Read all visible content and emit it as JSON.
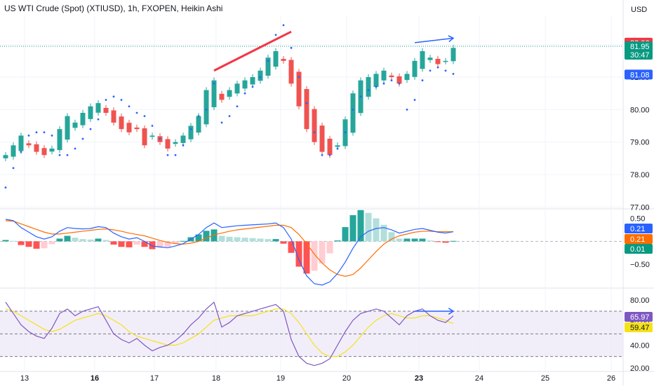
{
  "header": {
    "title": "US WTI Crude (Spot) (XTIUSD), 1h, FXOPEN, Heikin Ashi",
    "currency": "USD"
  },
  "colors": {
    "up": "#26a69a",
    "down": "#ef5350",
    "psar": "#2962ff",
    "macd_line": "#2962ff",
    "signal_line": "#ff6d00",
    "hist_up_strong": "#26a69a",
    "hist_up_weak": "#b2dfdb",
    "hist_down_strong": "#ff5252",
    "hist_down_weak": "#ffcdd2",
    "rsi_line": "#7e57c2",
    "rsi_ma": "#f5e21a",
    "rsi_band": "#ede7f6",
    "divergence_red": "#f23645",
    "divergence_blue": "#2962ff",
    "grid": "#f0f3fa",
    "text": "#131722"
  },
  "price_axis": {
    "ticks": [
      "82.00",
      "81.00",
      "80.00",
      "79.00",
      "78.00",
      "77.00"
    ],
    "badges": [
      {
        "label": "82.06",
        "color": "#f23645"
      },
      {
        "label": "81.95",
        "sub": "30:47",
        "color": "#089981"
      },
      {
        "label": "81.08",
        "color": "#2962ff"
      }
    ]
  },
  "macd_axis": {
    "ticks": [
      "0.50",
      "−0.50"
    ],
    "badges": [
      {
        "label": "0.21",
        "color": "#2962ff"
      },
      {
        "label": "0.21",
        "color": "#ff6d00"
      },
      {
        "label": "0.01",
        "color": "#089981"
      }
    ]
  },
  "rsi_axis": {
    "ticks": [
      "80.00",
      "60.00",
      "40.00",
      "20.00"
    ],
    "badges": [
      {
        "label": "65.97",
        "color": "#7e57c2"
      },
      {
        "label": "59.47",
        "color": "#f5e21a"
      }
    ]
  },
  "time_axis": {
    "labels": [
      {
        "text": "13",
        "bold": false
      },
      {
        "text": "16",
        "bold": true
      },
      {
        "text": "17",
        "bold": false
      },
      {
        "text": "18",
        "bold": false
      },
      {
        "text": "19",
        "bold": false
      },
      {
        "text": "20",
        "bold": false
      },
      {
        "text": "23",
        "bold": true
      },
      {
        "text": "24",
        "bold": false
      },
      {
        "text": "25",
        "bold": false
      },
      {
        "text": "26",
        "bold": false
      }
    ]
  },
  "chart_data": {
    "type": "candlestick",
    "candle_type": "Heikin Ashi",
    "interval": "1h",
    "ylim": [
      76.9,
      82.9
    ],
    "current_price": 81.95,
    "countdown": "30:47",
    "hline_price": 81.95,
    "close_series": [
      78.6,
      78.9,
      79.2,
      78.9,
      78.7,
      78.6,
      78.8,
      79.4,
      79.8,
      79.6,
      79.9,
      80.1,
      80.2,
      79.9,
      79.6,
      79.4,
      79.3,
      79.4,
      78.9,
      79.2,
      79.0,
      78.8,
      79.0,
      79.2,
      79.5,
      79.8,
      80.6,
      80.9,
      80.3,
      80.6,
      80.8,
      80.9,
      81.0,
      81.2,
      81.6,
      81.8,
      81.5,
      80.8,
      80.1,
      79.4,
      79.0,
      78.7,
      78.6,
      78.9,
      79.7,
      80.5,
      80.9,
      81.0,
      81.1,
      81.2,
      81.0,
      80.8,
      81.1,
      81.5,
      81.8,
      81.6,
      81.4,
      81.5,
      81.9
    ],
    "psar_series": [
      77.6,
      78.2,
      78.7,
      79.2,
      79.3,
      79.3,
      79.2,
      78.6,
      78.6,
      78.8,
      79.1,
      79.4,
      79.7,
      80.3,
      80.4,
      80.3,
      80.1,
      79.9,
      79.8,
      79.5,
      79.1,
      78.6,
      78.6,
      78.9,
      79.4,
      79.8,
      80.0,
      80.8,
      79.6,
      79.8,
      80.1,
      80.5,
      80.7,
      81.0,
      81.5,
      82.3,
      82.6,
      81.9,
      81.0,
      80.2,
      79.3,
      78.6,
      78.6,
      78.8,
      79.3,
      80.0,
      80.4,
      80.6,
      80.7,
      80.8,
      80.9,
      80.8,
      80.0,
      80.3,
      80.9,
      81.2,
      81.3,
      81.2,
      81.1
    ],
    "macd": {
      "ylim": [
        -1.0,
        0.6
      ],
      "macd_line": [
        0.48,
        0.45,
        0.3,
        0.2,
        0.1,
        0.05,
        0.1,
        0.22,
        0.3,
        0.28,
        0.27,
        0.28,
        0.32,
        0.3,
        0.18,
        0.1,
        0.05,
        0.08,
        0.0,
        -0.1,
        -0.12,
        -0.14,
        -0.1,
        -0.05,
        0.05,
        0.15,
        0.3,
        0.4,
        0.3,
        0.32,
        0.34,
        0.35,
        0.36,
        0.37,
        0.38,
        0.4,
        0.3,
        0.05,
        -0.4,
        -0.75,
        -0.92,
        -0.95,
        -0.88,
        -0.7,
        -0.45,
        -0.15,
        0.1,
        0.22,
        0.28,
        0.3,
        0.25,
        0.18,
        0.22,
        0.26,
        0.28,
        0.24,
        0.2,
        0.18,
        0.21
      ],
      "signal_line": [
        0.45,
        0.44,
        0.38,
        0.32,
        0.26,
        0.2,
        0.16,
        0.16,
        0.18,
        0.2,
        0.22,
        0.24,
        0.26,
        0.27,
        0.25,
        0.22,
        0.18,
        0.15,
        0.12,
        0.07,
        0.02,
        -0.02,
        -0.05,
        -0.06,
        -0.04,
        0.0,
        0.07,
        0.14,
        0.18,
        0.22,
        0.25,
        0.27,
        0.29,
        0.31,
        0.33,
        0.35,
        0.35,
        0.3,
        0.15,
        -0.05,
        -0.28,
        -0.47,
        -0.62,
        -0.72,
        -0.76,
        -0.72,
        -0.58,
        -0.4,
        -0.22,
        -0.06,
        0.05,
        0.12,
        0.16,
        0.2,
        0.22,
        0.22,
        0.21,
        0.21,
        0.21
      ],
      "histogram": [
        0.03,
        0.01,
        -0.08,
        -0.12,
        -0.16,
        -0.15,
        -0.06,
        0.06,
        0.12,
        0.08,
        0.05,
        0.04,
        0.06,
        0.03,
        -0.07,
        -0.12,
        -0.13,
        -0.07,
        -0.12,
        -0.17,
        -0.14,
        -0.12,
        -0.05,
        0.01,
        0.09,
        0.15,
        0.23,
        0.26,
        0.12,
        0.1,
        0.09,
        0.08,
        0.07,
        0.06,
        0.05,
        0.05,
        -0.05,
        -0.25,
        -0.55,
        -0.7,
        -0.64,
        -0.48,
        -0.26,
        0.02,
        0.31,
        0.57,
        0.68,
        0.62,
        0.5,
        0.36,
        0.2,
        0.06,
        0.06,
        0.06,
        0.06,
        0.02,
        -0.01,
        -0.03,
        0.01
      ]
    },
    "rsi": {
      "ylim": [
        18,
        88
      ],
      "upper_band": 70,
      "middle_band": 50,
      "lower_band": 30,
      "rsi_line": [
        78,
        68,
        58,
        52,
        48,
        46,
        55,
        68,
        72,
        66,
        70,
        72,
        74,
        62,
        50,
        45,
        42,
        46,
        40,
        35,
        38,
        40,
        44,
        50,
        58,
        64,
        72,
        78,
        56,
        60,
        66,
        68,
        70,
        72,
        74,
        76,
        70,
        45,
        30,
        24,
        22,
        24,
        28,
        40,
        52,
        62,
        68,
        70,
        72,
        70,
        64,
        58,
        66,
        70,
        72,
        66,
        62,
        60,
        66
      ],
      "rsi_ma": [
        72,
        70,
        66,
        62,
        58,
        54,
        52,
        54,
        58,
        62,
        64,
        66,
        68,
        66,
        62,
        58,
        52,
        48,
        46,
        44,
        42,
        40,
        40,
        42,
        46,
        50,
        56,
        62,
        64,
        66,
        66,
        66,
        66,
        68,
        70,
        72,
        72,
        68,
        60,
        50,
        40,
        33,
        30,
        30,
        34,
        40,
        48,
        56,
        62,
        66,
        68,
        66,
        64,
        64,
        66,
        66,
        64,
        62,
        59
      ]
    },
    "annotations": {
      "red_line": {
        "from_index": 27,
        "to_index": 37,
        "from_price": 81.2,
        "to_price": 82.4
      },
      "blue_arrow_price": {
        "from_index": 53,
        "to_index": 58,
        "from_price": 82.06,
        "to_price": 82.2
      },
      "blue_arrow_rsi": {
        "from_index": 53,
        "to_index": 58,
        "from_value": 70,
        "to_value": 70
      }
    }
  }
}
